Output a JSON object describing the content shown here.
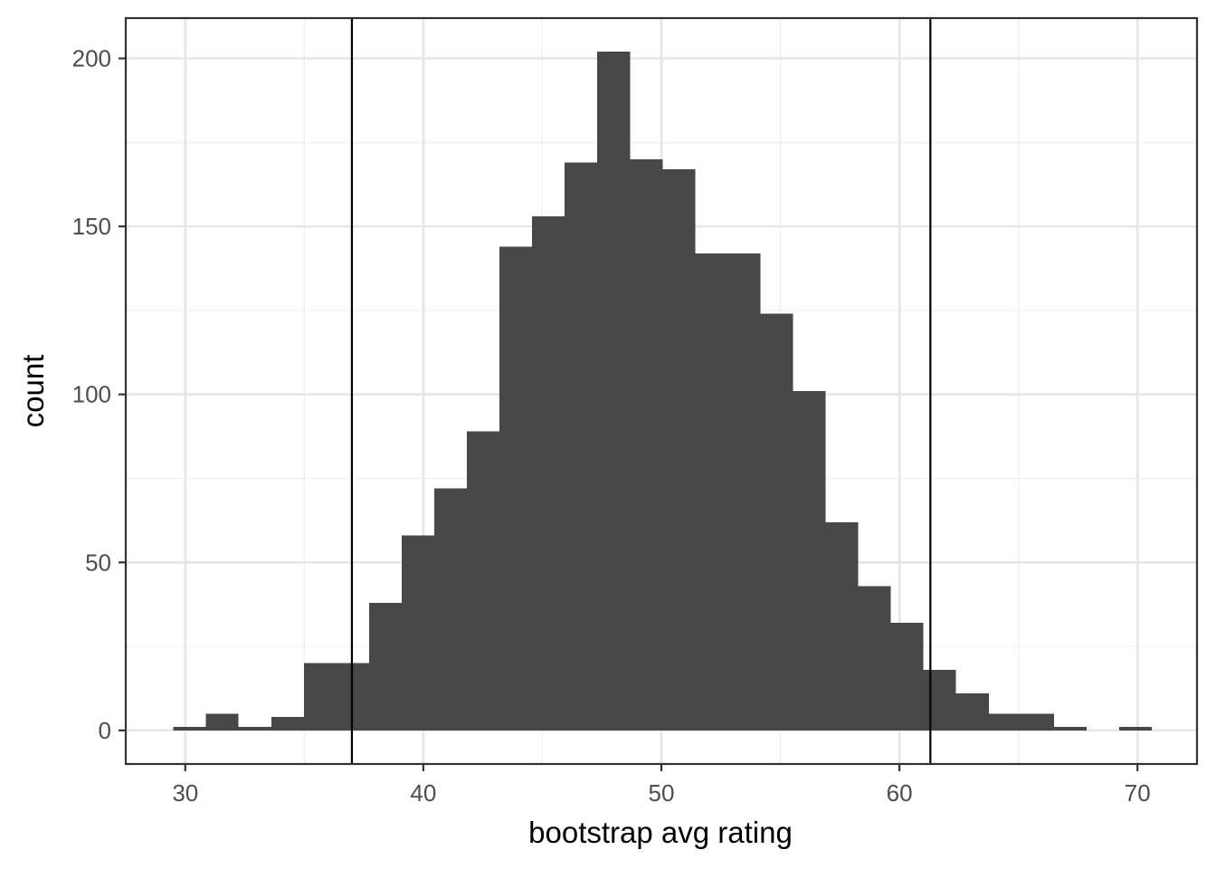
{
  "chart_data": {
    "type": "bar",
    "subtype": "histogram",
    "xlabel": "bootstrap avg rating",
    "ylabel": "count",
    "xlim": [
      27.5,
      72.5
    ],
    "ylim": [
      -10,
      212
    ],
    "x_ticks": [
      30,
      40,
      50,
      60,
      70
    ],
    "y_ticks": [
      0,
      50,
      100,
      150,
      200
    ],
    "grid": true,
    "bin_width": 1.37,
    "bins": [
      {
        "x_start": 29.5,
        "x_end": 30.87,
        "count": 1
      },
      {
        "x_start": 30.87,
        "x_end": 32.24,
        "count": 5
      },
      {
        "x_start": 32.24,
        "x_end": 33.61,
        "count": 1
      },
      {
        "x_start": 33.61,
        "x_end": 34.98,
        "count": 4
      },
      {
        "x_start": 34.98,
        "x_end": 36.35,
        "count": 20
      },
      {
        "x_start": 36.35,
        "x_end": 37.72,
        "count": 20
      },
      {
        "x_start": 37.72,
        "x_end": 39.09,
        "count": 38
      },
      {
        "x_start": 39.09,
        "x_end": 40.46,
        "count": 58
      },
      {
        "x_start": 40.46,
        "x_end": 41.83,
        "count": 72
      },
      {
        "x_start": 41.83,
        "x_end": 43.2,
        "count": 89
      },
      {
        "x_start": 43.2,
        "x_end": 44.57,
        "count": 144
      },
      {
        "x_start": 44.57,
        "x_end": 45.94,
        "count": 153
      },
      {
        "x_start": 45.94,
        "x_end": 47.31,
        "count": 169
      },
      {
        "x_start": 47.31,
        "x_end": 48.68,
        "count": 202
      },
      {
        "x_start": 48.68,
        "x_end": 50.05,
        "count": 170
      },
      {
        "x_start": 50.05,
        "x_end": 51.42,
        "count": 167
      },
      {
        "x_start": 51.42,
        "x_end": 52.79,
        "count": 142
      },
      {
        "x_start": 52.79,
        "x_end": 54.16,
        "count": 142
      },
      {
        "x_start": 54.16,
        "x_end": 55.53,
        "count": 124
      },
      {
        "x_start": 55.53,
        "x_end": 56.9,
        "count": 101
      },
      {
        "x_start": 56.9,
        "x_end": 58.27,
        "count": 62
      },
      {
        "x_start": 58.27,
        "x_end": 59.64,
        "count": 43
      },
      {
        "x_start": 59.64,
        "x_end": 61.01,
        "count": 32
      },
      {
        "x_start": 61.01,
        "x_end": 62.38,
        "count": 18
      },
      {
        "x_start": 62.38,
        "x_end": 63.75,
        "count": 11
      },
      {
        "x_start": 63.75,
        "x_end": 65.12,
        "count": 5
      },
      {
        "x_start": 65.12,
        "x_end": 66.49,
        "count": 5
      },
      {
        "x_start": 66.49,
        "x_end": 67.86,
        "count": 1
      },
      {
        "x_start": 67.86,
        "x_end": 69.23,
        "count": 0
      },
      {
        "x_start": 69.23,
        "x_end": 70.6,
        "count": 1
      }
    ],
    "vlines": [
      37.0,
      61.3
    ],
    "colors": {
      "bar": "#474747",
      "panel_border": "#333333",
      "grid_major": "#e6e6e6",
      "grid_minor": "#f0f0f0",
      "vline": "#000000"
    }
  }
}
